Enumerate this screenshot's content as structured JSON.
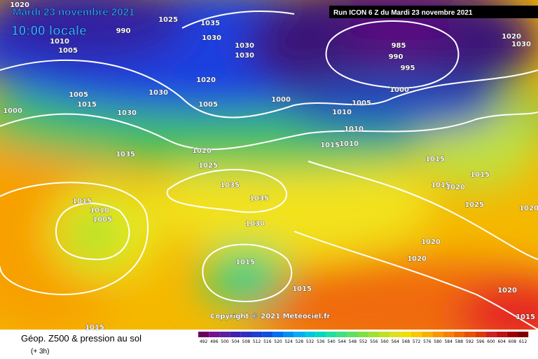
{
  "header": {
    "date": "Mardi 23 novembre 2021",
    "time": "10:00 locale",
    "run": "Run ICON 6 Z du Mardi 23 novembre 2021",
    "copyright": "Copyright © 2021 Meteociel.fr"
  },
  "isobar_labels": [
    "1020",
    "990",
    "1010",
    "1005",
    "1025",
    "1035",
    "1030",
    "1030",
    "1030",
    "1020",
    "1030",
    "1005",
    "1015",
    "1000",
    "1030",
    "1005",
    "1000",
    "985",
    "990",
    "995",
    "1000",
    "1005",
    "1010",
    "1010",
    "1015",
    "1010",
    "1035",
    "1020",
    "1025",
    "1015",
    "1015",
    "1015",
    "1020",
    "1015",
    "1010",
    "1005",
    "1035",
    "1035",
    "1025",
    "1020",
    "1030",
    "1020",
    "1020",
    "1015",
    "1015",
    "1020",
    "1015",
    "1015",
    "1020",
    "1030"
  ],
  "footer": {
    "title": "Géop. Z500 & pression au sol",
    "step": "(+ 3h)"
  },
  "colorbar": {
    "labels": [
      492,
      496,
      500,
      504,
      508,
      512,
      516,
      520,
      524,
      528,
      532,
      536,
      540,
      544,
      548,
      552,
      556,
      560,
      564,
      568,
      572,
      576,
      580,
      584,
      588,
      592,
      596,
      600,
      604,
      608,
      612
    ]
  }
}
